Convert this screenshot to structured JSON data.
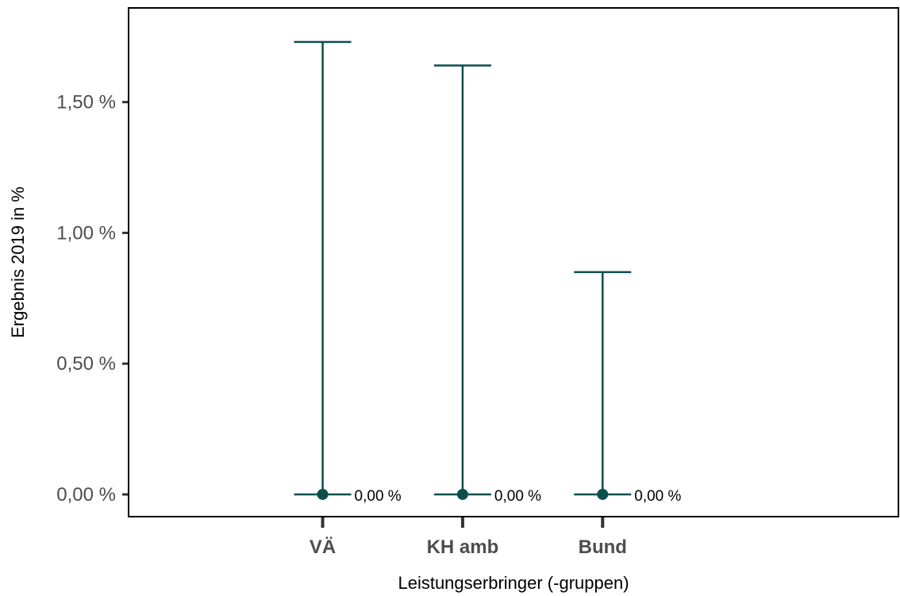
{
  "chart_data": {
    "type": "errorbar",
    "title": "",
    "xlabel": "Leistungserbringer (-gruppen)",
    "ylabel": "Ergebnis 2019 in %",
    "categories": [
      "VÄ",
      "KH amb",
      "Bund"
    ],
    "values": [
      0.0,
      0.0,
      0.0
    ],
    "lower": [
      0.0,
      0.0,
      0.0
    ],
    "upper": [
      1.73,
      1.64,
      0.85
    ],
    "value_labels": [
      "0,00 %",
      "0,00 %",
      "0,00 %"
    ],
    "yticks": [
      0.0,
      0.5,
      1.0,
      1.5
    ],
    "ytick_labels": [
      "0,00 %",
      "0,50 %",
      "1,00 %",
      "1,50 %"
    ],
    "ylim": [
      -0.085,
      1.86
    ],
    "grid": false,
    "legend": "none",
    "colors": {
      "series": "#0b4f4c",
      "axis": "#000000",
      "tick_text": "#4d4d4d"
    }
  }
}
